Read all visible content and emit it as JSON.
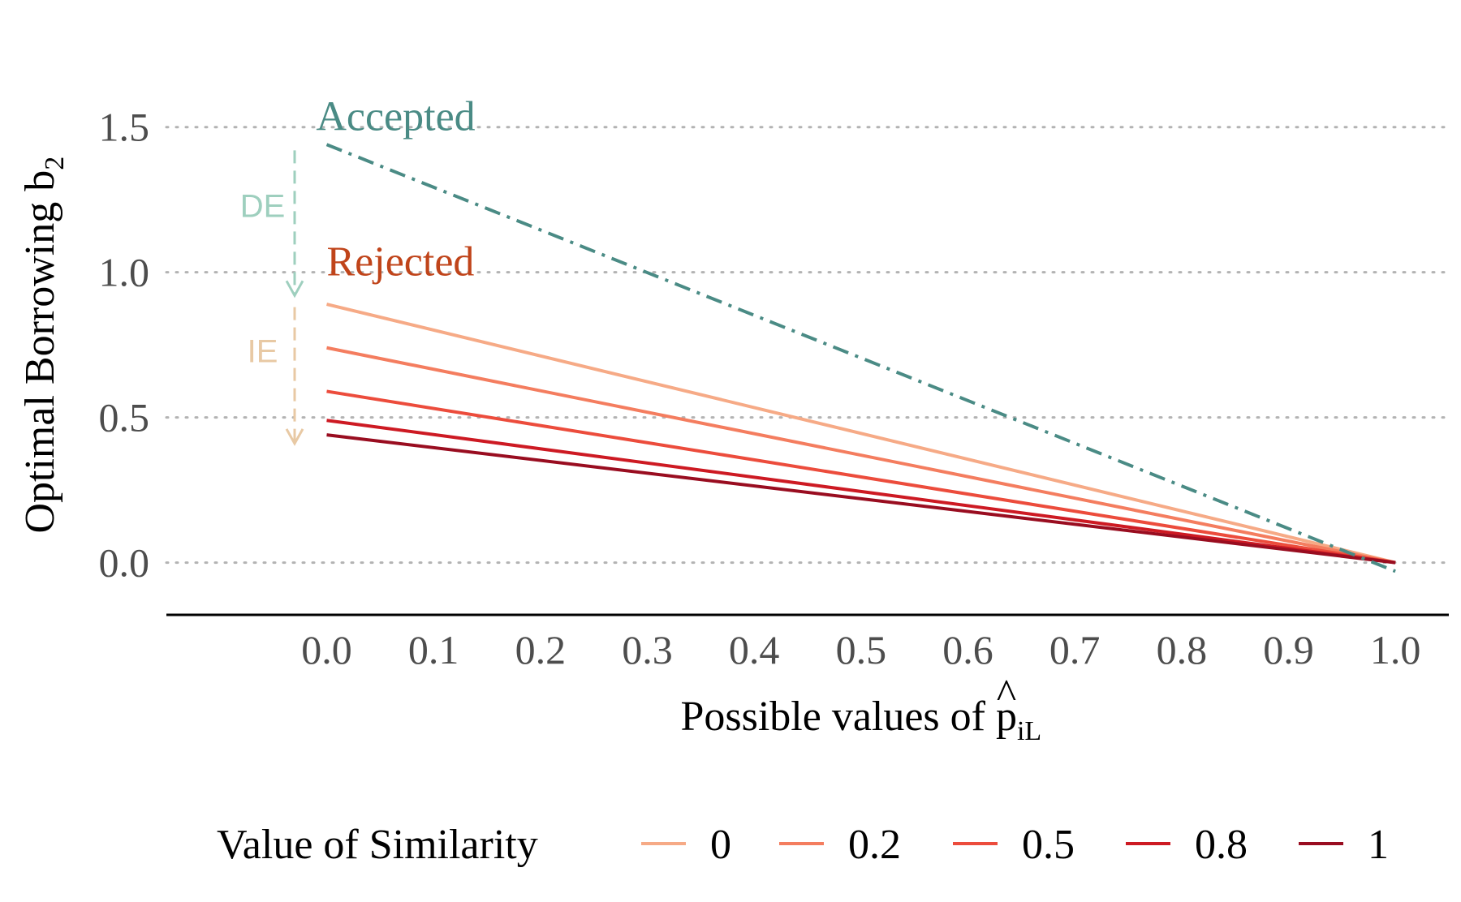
{
  "chart_data": {
    "type": "line",
    "xlabel": "Possible values of ",
    "xlabel_symbol": "p",
    "xlabel_hat": "^",
    "xlabel_subscript": "iL",
    "ylabel": "Optimal Borrowing b",
    "ylabel_subscript": "2",
    "xlim": [
      -0.15,
      1.05
    ],
    "ylim": [
      -0.18,
      1.72
    ],
    "x_ticks": [
      "0.0",
      "0.1",
      "0.2",
      "0.3",
      "0.4",
      "0.5",
      "0.6",
      "0.7",
      "0.8",
      "0.9",
      "1.0"
    ],
    "x_tick_values": [
      0,
      0.1,
      0.2,
      0.3,
      0.4,
      0.5,
      0.6,
      0.7,
      0.8,
      0.9,
      1.0
    ],
    "y_ticks": [
      "0.0",
      "0.5",
      "1.0",
      "1.5"
    ],
    "y_tick_values": [
      0,
      0.5,
      1.0,
      1.5
    ],
    "grid": "horizontal dotted",
    "legend_title": "Value of Similarity",
    "legend_position": "bottom",
    "series": [
      {
        "name": "0",
        "color": "#f6aa86",
        "x": [
          0,
          1
        ],
        "y": [
          0.89,
          0.0
        ]
      },
      {
        "name": "0.2",
        "color": "#f47d5f",
        "x": [
          0,
          1
        ],
        "y": [
          0.74,
          0.0
        ]
      },
      {
        "name": "0.5",
        "color": "#ec4c3c",
        "x": [
          0,
          1
        ],
        "y": [
          0.59,
          0.0
        ]
      },
      {
        "name": "0.8",
        "color": "#cd1a23",
        "x": [
          0,
          1
        ],
        "y": [
          0.49,
          0.0
        ]
      },
      {
        "name": "1",
        "color": "#990d20",
        "x": [
          0,
          1
        ],
        "y": [
          0.44,
          0.0
        ]
      }
    ],
    "accepted_line": {
      "color": "#4a8b85",
      "x": [
        0,
        1
      ],
      "y": [
        1.44,
        -0.03
      ]
    },
    "annotations": [
      {
        "text": "Accepted",
        "color": "#4a8b85",
        "x": -0.01,
        "y": 1.49
      },
      {
        "text": "Rejected",
        "color": "#c0441a",
        "x": 0.0,
        "y": 0.99
      },
      {
        "text": "DE",
        "color": "#9ecfbe",
        "x": -0.06,
        "y": 1.19
      },
      {
        "text": "IE",
        "color": "#e8c9a4",
        "x": -0.06,
        "y": 0.69
      }
    ],
    "arrows": [
      {
        "label": "DE",
        "color": "#9ecfbe",
        "x": -0.03,
        "y_from": 1.42,
        "y_to": 0.92
      },
      {
        "label": "IE",
        "color": "#e8c9a4",
        "x": -0.03,
        "y_from": 0.88,
        "y_to": 0.41
      }
    ]
  }
}
